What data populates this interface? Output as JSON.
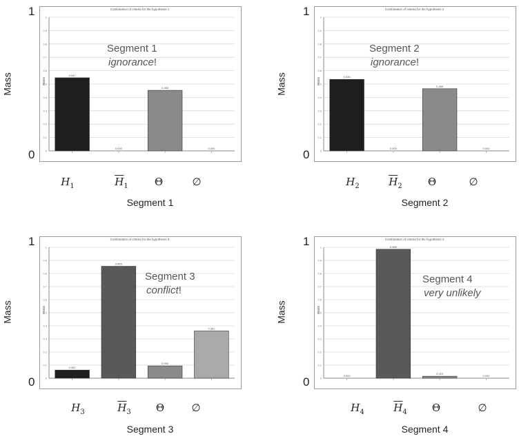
{
  "chart_data": [
    {
      "type": "bar",
      "title": "Combination of criteria for the hypothesis 1",
      "ylabel": "Mass",
      "mini_ylabel": "mass",
      "xlabel": "Segment 1",
      "ylim": [
        0,
        1
      ],
      "ytick_labels": [
        "0",
        "1"
      ],
      "annotation": {
        "heading": "Segment 1",
        "emphasis": "ignorance",
        "suffix": "!"
      },
      "categories": [
        {
          "symbol": "H",
          "sub": "1",
          "overline": false
        },
        {
          "symbol": "H",
          "sub": "1",
          "overline": true
        },
        {
          "symbol": "Θ",
          "sub": "",
          "overline": false
        },
        {
          "symbol": "∅",
          "sub": "",
          "overline": false
        }
      ],
      "values": [
        0.547,
        0.0,
        0.453,
        0.0
      ],
      "value_labels": [
        "0.547",
        "0.000",
        "0.453",
        "0.000"
      ],
      "colors": [
        "#1e1e1e",
        "#595959",
        "#8a8a8a",
        "#a9a9a9"
      ]
    },
    {
      "type": "bar",
      "title": "Combination of criteria for the hypothesis 2",
      "ylabel": "Mass",
      "mini_ylabel": "mass",
      "xlabel": "Segment 2",
      "ylim": [
        0,
        1
      ],
      "ytick_labels": [
        "0",
        "1"
      ],
      "annotation": {
        "heading": "Segment 2",
        "emphasis": "ignorance",
        "suffix": "!"
      },
      "categories": [
        {
          "symbol": "H",
          "sub": "2",
          "overline": false
        },
        {
          "symbol": "H",
          "sub": "2",
          "overline": true
        },
        {
          "symbol": "Θ",
          "sub": "",
          "overline": false
        },
        {
          "symbol": "∅",
          "sub": "",
          "overline": false
        }
      ],
      "values": [
        0.535,
        0.0,
        0.465,
        0.0
      ],
      "value_labels": [
        "0.535",
        "0.000",
        "0.465",
        "0.000"
      ],
      "colors": [
        "#1e1e1e",
        "#595959",
        "#8a8a8a",
        "#a9a9a9"
      ]
    },
    {
      "type": "bar",
      "title": "Combination of criteria for the hypothesis 3",
      "ylabel": "Mass",
      "mini_ylabel": "mass",
      "xlabel": "Segment 3",
      "ylim": [
        0,
        1
      ],
      "ytick_labels": [
        "0",
        "1"
      ],
      "annotation": {
        "heading": "Segment 3",
        "emphasis": "conflict",
        "suffix": "!"
      },
      "categories": [
        {
          "symbol": "H",
          "sub": "3",
          "overline": false
        },
        {
          "symbol": "H",
          "sub": "3",
          "overline": true
        },
        {
          "symbol": "Θ",
          "sub": "",
          "overline": false
        },
        {
          "symbol": "∅",
          "sub": "",
          "overline": false
        }
      ],
      "values": [
        0.062,
        0.855,
        0.094,
        0.361
      ],
      "value_labels": [
        "0.062",
        "0.855",
        "0.094",
        "0.361"
      ],
      "colors": [
        "#1e1e1e",
        "#595959",
        "#8a8a8a",
        "#a9a9a9"
      ]
    },
    {
      "type": "bar",
      "title": "Combination of criteria for the hypothesis 4",
      "ylabel": "Mass",
      "mini_ylabel": "mass",
      "xlabel": "Segment 4",
      "ylim": [
        0,
        1
      ],
      "ytick_labels": [
        "0",
        "1"
      ],
      "annotation": {
        "heading": "Segment 4",
        "emphasis": "very unlikely",
        "suffix": ""
      },
      "categories": [
        {
          "symbol": "H",
          "sub": "4",
          "overline": false
        },
        {
          "symbol": "H",
          "sub": "4",
          "overline": true
        },
        {
          "symbol": "Θ",
          "sub": "",
          "overline": false
        },
        {
          "symbol": "∅",
          "sub": "",
          "overline": false
        }
      ],
      "values": [
        0.0,
        0.985,
        0.015,
        0.0
      ],
      "value_labels": [
        "0.000",
        "0.985",
        "0.015",
        "0.000"
      ],
      "colors": [
        "#1e1e1e",
        "#595959",
        "#8a8a8a",
        "#a9a9a9"
      ]
    }
  ]
}
